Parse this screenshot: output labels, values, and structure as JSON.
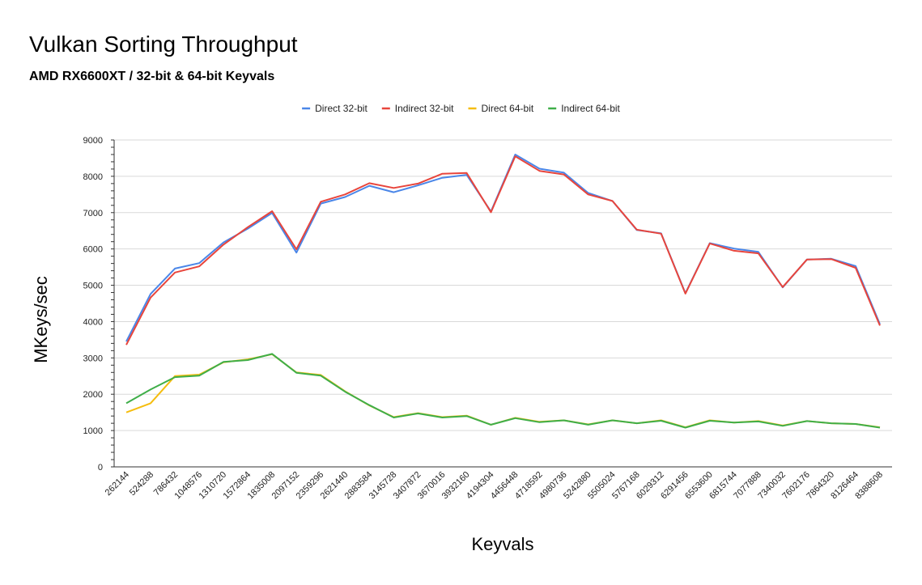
{
  "chart_data": {
    "type": "line",
    "title": "Vulkan Sorting Throughput",
    "subtitle": "AMD RX6600XT / 32-bit & 64-bit Keyvals",
    "xlabel": "Keyvals",
    "ylabel": "MKeys/sec",
    "ylim": [
      0,
      9000
    ],
    "yticks": [
      "0",
      "1000",
      "2000",
      "3000",
      "4000",
      "5000",
      "6000",
      "7000",
      "8000",
      "9000"
    ],
    "grid": true,
    "legend_position": "top-center",
    "categories": [
      "262144",
      "524288",
      "786432",
      "1048576",
      "1310720",
      "1572864",
      "1835008",
      "2097152",
      "2359296",
      "2621440",
      "2883584",
      "3145728",
      "3407872",
      "3670016",
      "3932160",
      "4194304",
      "4456448",
      "4718592",
      "4980736",
      "5242880",
      "5505024",
      "5767168",
      "6029312",
      "6291456",
      "6553600",
      "6815744",
      "7077888",
      "7340032",
      "7602176",
      "7864320",
      "8126464",
      "8388608"
    ],
    "series": [
      {
        "name": "Direct 32-bit",
        "color": "#4a86e8",
        "values": [
          3450,
          4760,
          5460,
          5610,
          6180,
          6560,
          6990,
          5900,
          7250,
          7430,
          7740,
          7560,
          7750,
          7960,
          8040,
          7030,
          8600,
          8210,
          8100,
          7540,
          7320,
          6520,
          6430,
          4780,
          6160,
          6010,
          5920,
          4940,
          5710,
          5730,
          5530,
          3930
        ]
      },
      {
        "name": "Indirect 32-bit",
        "color": "#e8453c",
        "values": [
          3360,
          4660,
          5350,
          5520,
          6120,
          6600,
          7040,
          5990,
          7300,
          7500,
          7810,
          7680,
          7800,
          8070,
          8090,
          7010,
          8550,
          8150,
          8050,
          7500,
          7320,
          6530,
          6420,
          4770,
          6150,
          5950,
          5880,
          4950,
          5710,
          5720,
          5480,
          3890
        ]
      },
      {
        "name": "Direct 64-bit",
        "color": "#f5bd0f",
        "values": [
          1500,
          1750,
          2500,
          2540,
          2880,
          2960,
          3100,
          2600,
          2530,
          2080,
          1690,
          1370,
          1480,
          1370,
          1410,
          1160,
          1350,
          1240,
          1280,
          1170,
          1280,
          1200,
          1280,
          1090,
          1280,
          1220,
          1260,
          1140,
          1260,
          1200,
          1180,
          1090
        ]
      },
      {
        "name": "Indirect 64-bit",
        "color": "#3fae49",
        "values": [
          1750,
          2130,
          2470,
          2510,
          2890,
          2940,
          3110,
          2590,
          2510,
          2070,
          1700,
          1360,
          1470,
          1360,
          1400,
          1160,
          1340,
          1230,
          1280,
          1160,
          1280,
          1200,
          1270,
          1080,
          1270,
          1220,
          1250,
          1130,
          1260,
          1200,
          1180,
          1080
        ]
      }
    ]
  }
}
